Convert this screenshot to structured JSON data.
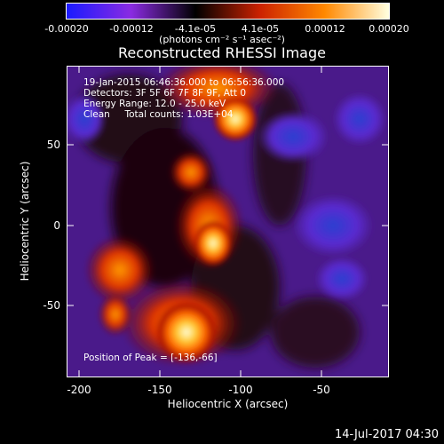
{
  "title": "Reconstructed RHESSI Image",
  "colorbar": {
    "ticks": [
      "-0.00020",
      "-0.00012",
      "-4.1e-05",
      "4.1e-05",
      "0.00012",
      "0.00020"
    ],
    "units": "(photons cm⁻² s⁻¹ asec⁻²)",
    "colors": [
      "#1a1aff",
      "#8a2be2",
      "#000000",
      "#cc2200",
      "#ff8800",
      "#ffffe0"
    ]
  },
  "info": {
    "time": "19-Jan-2015 06:46:36.000 to 06:56:36.000",
    "detectors": "Detectors: 3F 5F 6F 7F 8F 9F, Att 0",
    "energy": "Energy Range: 12.0 - 25.0 keV",
    "clean": "Clean     Total counts: 1.03E+04",
    "peak": "Position of Peak = [-136,-66]"
  },
  "axes": {
    "xlabel": "Heliocentric X (arcsec)",
    "ylabel": "Heliocentric Y (arcsec)",
    "xticks": [
      "-200",
      "-150",
      "-100",
      "-50"
    ],
    "yticks": [
      "50",
      "0",
      "-50"
    ]
  },
  "stamp": "14-Jul-2017 04:30"
}
